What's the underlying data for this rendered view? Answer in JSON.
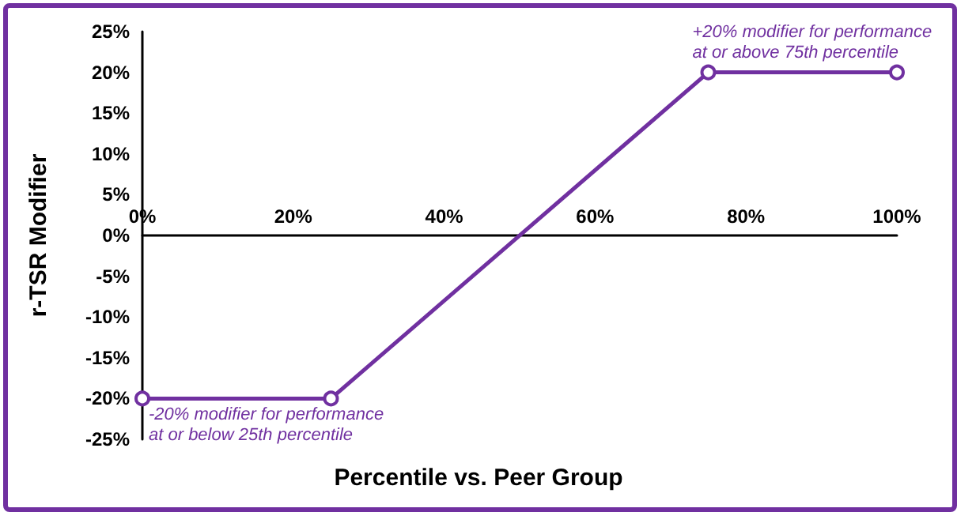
{
  "chart_data": {
    "type": "line",
    "xlabel": "Percentile vs. Peer Group",
    "ylabel": "r-TSR Modifier",
    "x": [
      0,
      25,
      75,
      100
    ],
    "series": [
      {
        "color": "#7030a0",
        "values": [
          -20,
          -20,
          20,
          20
        ]
      }
    ],
    "xlim": [
      0,
      100
    ],
    "xticks": [
      {
        "value": 0,
        "label": "0%"
      },
      {
        "value": 20,
        "label": "20%"
      },
      {
        "value": 40,
        "label": "40%"
      },
      {
        "value": 60,
        "label": "60%"
      },
      {
        "value": 80,
        "label": "80%"
      },
      {
        "value": 100,
        "label": "100%"
      }
    ],
    "ylim": [
      -25,
      25
    ],
    "yticks": [
      {
        "value": -25,
        "label": "-25%"
      },
      {
        "value": -20,
        "label": "-20%"
      },
      {
        "value": -15,
        "label": "-15%"
      },
      {
        "value": -10,
        "label": "-10%"
      },
      {
        "value": -5,
        "label": "-5%"
      },
      {
        "value": 0,
        "label": "0%"
      },
      {
        "value": 5,
        "label": "5%"
      },
      {
        "value": 10,
        "label": "10%"
      },
      {
        "value": 15,
        "label": "15%"
      },
      {
        "value": 20,
        "label": "20%"
      },
      {
        "value": 25,
        "label": "25%"
      }
    ],
    "annotations": [
      {
        "text": "+20% modifier for performance\nat or above 75th percentile",
        "x": 75,
        "y": 20
      },
      {
        "text": "-20% modifier for performance\nat or below 25th percentile",
        "x": 0,
        "y": -20
      }
    ],
    "grid": false,
    "marker": "circle",
    "line_style": "solid"
  }
}
